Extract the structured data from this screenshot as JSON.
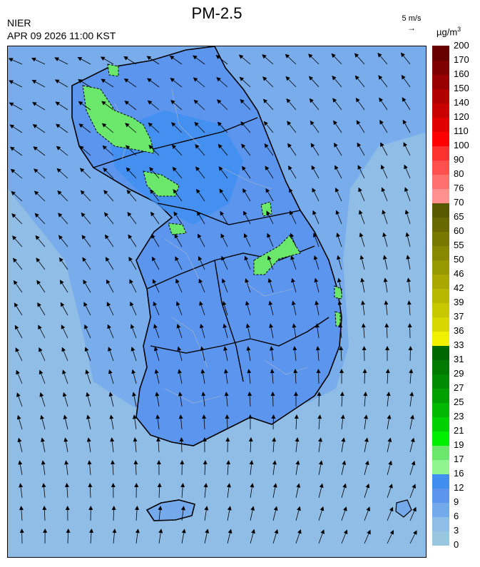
{
  "header": {
    "title": "PM-2.5",
    "organization": "NIER",
    "datetime": "APR 09 2026 11:00 KST",
    "wind_reference_label": "5 m/s",
    "unit_base": "µg/m",
    "unit_exp": "3"
  },
  "colorbar": {
    "labels": [
      "0",
      "3",
      "6",
      "9",
      "12",
      "16",
      "17",
      "19",
      "21",
      "23",
      "25",
      "27",
      "29",
      "31",
      "33",
      "36",
      "37",
      "39",
      "42",
      "46",
      "50",
      "55",
      "60",
      "65",
      "70",
      "76",
      "80",
      "90",
      "100",
      "110",
      "120",
      "140",
      "150",
      "160",
      "170",
      "200"
    ],
    "colors": [
      "#99c7e0",
      "#8fbde6",
      "#74a9eb",
      "#5b95ee",
      "#3f8ef0",
      "#8ff58f",
      "#6be86b",
      "#00ee00",
      "#00d000",
      "#00b800",
      "#00a000",
      "#008c00",
      "#007a00",
      "#006800",
      "#f0f000",
      "#d8d800",
      "#c8c800",
      "#b8b800",
      "#a8a800",
      "#989800",
      "#888800",
      "#787800",
      "#686800",
      "#585800",
      "#ff9090",
      "#ff7070",
      "#ff5050",
      "#ff3030",
      "#ff0000",
      "#e00000",
      "#c80000",
      "#b00000",
      "#980000",
      "#800000",
      "#680000"
    ]
  },
  "map": {
    "colors": {
      "sea": "#8fbde6",
      "land_low": "#74a9eb",
      "land_mid": "#5b95ee",
      "land_high": "#3f8ef0",
      "hotspot": "#6be86b",
      "hotspot_edge": "#8ff58f",
      "border": "#000000",
      "district": "#b0b8c8"
    },
    "wind_direction": "north-westward / northward"
  }
}
